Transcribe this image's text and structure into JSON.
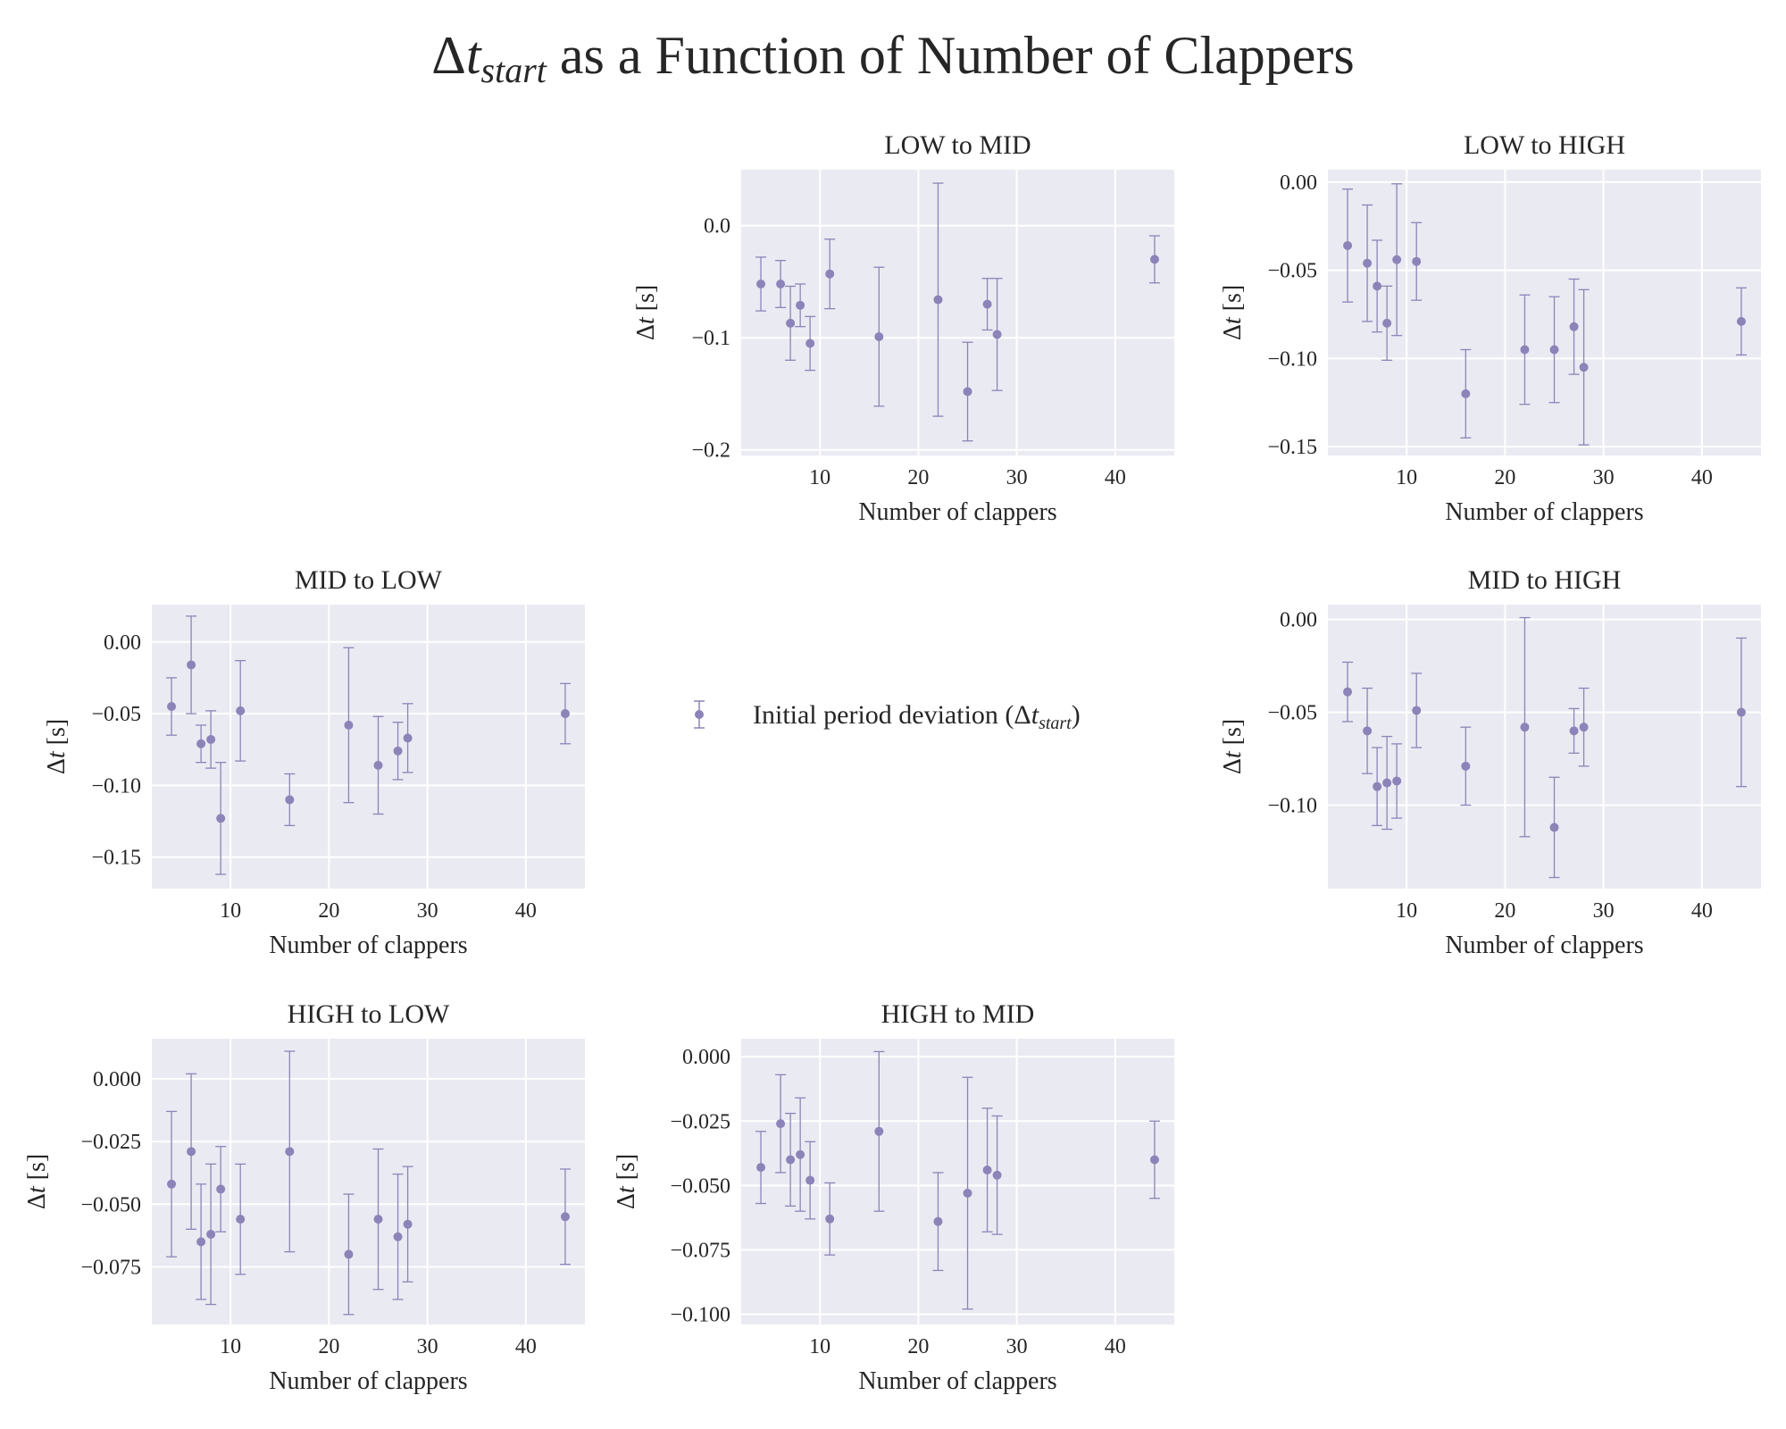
{
  "figure": {
    "title_prefix": "Δ",
    "title_var": "t",
    "title_sub": "start",
    "title_rest": " as a Function of Number of Clappers",
    "background": "#eaeaf2",
    "grid_color": "#ffffff",
    "marker_color": "#8c84b8"
  },
  "legend": {
    "label_main": "Initial period deviation (Δ",
    "label_var": "t",
    "label_sub": "start",
    "label_end": ")",
    "placement": "center"
  },
  "chart_data": [
    {
      "type": "scatter",
      "title": "LOW to MID",
      "xlabel": "Number of clappers",
      "ylabel_prefix": "Δ",
      "ylabel_var": "t",
      "ylabel_unit": " [s]",
      "xlim": [
        2,
        46
      ],
      "ylim": [
        -0.205,
        0.05
      ],
      "xticks": [
        10,
        20,
        30,
        40
      ],
      "yticks": [
        0.0,
        -0.1,
        -0.2
      ],
      "ytick_labels": [
        "0.0",
        "−0.1",
        "−0.2"
      ],
      "grid": true,
      "series": [
        {
          "x": [
            4,
            6,
            7,
            8,
            9,
            11,
            16,
            22,
            25,
            27,
            28,
            44
          ],
          "y": [
            -0.052,
            -0.052,
            -0.087,
            -0.071,
            -0.105,
            -0.043,
            -0.099,
            -0.066,
            -0.148,
            -0.07,
            -0.097,
            -0.03
          ],
          "yerr": [
            0.024,
            0.021,
            0.033,
            0.019,
            0.024,
            0.031,
            0.062,
            0.104,
            0.044,
            0.023,
            0.05,
            0.021
          ]
        }
      ]
    },
    {
      "type": "scatter",
      "title": "LOW to HIGH",
      "xlabel": "Number of clappers",
      "ylabel_prefix": "Δ",
      "ylabel_var": "t",
      "ylabel_unit": " [s]",
      "xlim": [
        2,
        46
      ],
      "ylim": [
        -0.155,
        0.007
      ],
      "xticks": [
        10,
        20,
        30,
        40
      ],
      "yticks": [
        0.0,
        -0.05,
        -0.1,
        -0.15
      ],
      "ytick_labels": [
        "0.00",
        "−0.05",
        "−0.10",
        "−0.15"
      ],
      "grid": true,
      "series": [
        {
          "x": [
            4,
            6,
            7,
            8,
            9,
            11,
            16,
            22,
            25,
            27,
            28,
            44
          ],
          "y": [
            -0.036,
            -0.046,
            -0.059,
            -0.08,
            -0.044,
            -0.045,
            -0.12,
            -0.095,
            -0.095,
            -0.082,
            -0.105,
            -0.079
          ],
          "yerr": [
            0.032,
            0.033,
            0.026,
            0.021,
            0.043,
            0.022,
            0.025,
            0.031,
            0.03,
            0.027,
            0.044,
            0.019
          ]
        }
      ]
    },
    {
      "type": "scatter",
      "title": "MID to LOW",
      "xlabel": "Number of clappers",
      "ylabel_prefix": "Δ",
      "ylabel_var": "t",
      "ylabel_unit": " [s]",
      "xlim": [
        2,
        46
      ],
      "ylim": [
        -0.172,
        0.026
      ],
      "xticks": [
        10,
        20,
        30,
        40
      ],
      "yticks": [
        0.0,
        -0.05,
        -0.1,
        -0.15
      ],
      "ytick_labels": [
        "0.00",
        "−0.05",
        "−0.10",
        "−0.15"
      ],
      "grid": true,
      "series": [
        {
          "x": [
            4,
            6,
            7,
            8,
            9,
            11,
            16,
            22,
            25,
            27,
            28,
            44
          ],
          "y": [
            -0.045,
            -0.016,
            -0.071,
            -0.068,
            -0.123,
            -0.048,
            -0.11,
            -0.058,
            -0.086,
            -0.076,
            -0.067,
            -0.05
          ],
          "yerr": [
            0.02,
            0.034,
            0.013,
            0.02,
            0.039,
            0.035,
            0.018,
            0.054,
            0.034,
            0.02,
            0.024,
            0.021
          ]
        }
      ]
    },
    {
      "type": "scatter",
      "title": "MID to HIGH",
      "xlabel": "Number of clappers",
      "ylabel_prefix": "Δ",
      "ylabel_var": "t",
      "ylabel_unit": " [s]",
      "xlim": [
        2,
        46
      ],
      "ylim": [
        -0.145,
        0.008
      ],
      "xticks": [
        10,
        20,
        30,
        40
      ],
      "yticks": [
        0.0,
        -0.05,
        -0.1
      ],
      "ytick_labels": [
        "0.00",
        "−0.05",
        "−0.10"
      ],
      "grid": true,
      "series": [
        {
          "x": [
            4,
            6,
            7,
            8,
            9,
            11,
            16,
            22,
            25,
            27,
            28,
            44
          ],
          "y": [
            -0.039,
            -0.06,
            -0.09,
            -0.088,
            -0.087,
            -0.049,
            -0.079,
            -0.058,
            -0.112,
            -0.06,
            -0.058,
            -0.05
          ],
          "yerr": [
            0.016,
            0.023,
            0.021,
            0.025,
            0.02,
            0.02,
            0.021,
            0.059,
            0.027,
            0.012,
            0.021,
            0.04
          ]
        }
      ]
    },
    {
      "type": "scatter",
      "title": "HIGH to LOW",
      "xlabel": "Number of clappers",
      "ylabel_prefix": "Δ",
      "ylabel_var": "t",
      "ylabel_unit": " [s]",
      "xlim": [
        2,
        46
      ],
      "ylim": [
        -0.098,
        0.016
      ],
      "xticks": [
        10,
        20,
        30,
        40
      ],
      "yticks": [
        0.0,
        -0.025,
        -0.05,
        -0.075
      ],
      "ytick_labels": [
        "0.000",
        "−0.025",
        "−0.050",
        "−0.075"
      ],
      "grid": true,
      "series": [
        {
          "x": [
            4,
            6,
            7,
            8,
            9,
            11,
            16,
            22,
            25,
            27,
            28,
            44
          ],
          "y": [
            -0.042,
            -0.029,
            -0.065,
            -0.062,
            -0.044,
            -0.056,
            -0.029,
            -0.07,
            -0.056,
            -0.063,
            -0.058,
            -0.055
          ],
          "yerr": [
            0.029,
            0.031,
            0.023,
            0.028,
            0.017,
            0.022,
            0.04,
            0.024,
            0.028,
            0.025,
            0.023,
            0.019
          ]
        }
      ]
    },
    {
      "type": "scatter",
      "title": "HIGH to MID",
      "xlabel": "Number of clappers",
      "ylabel_prefix": "Δ",
      "ylabel_var": "t",
      "ylabel_unit": " [s]",
      "xlim": [
        2,
        46
      ],
      "ylim": [
        -0.104,
        0.007
      ],
      "xticks": [
        10,
        20,
        30,
        40
      ],
      "yticks": [
        0.0,
        -0.025,
        -0.05,
        -0.075,
        -0.1
      ],
      "ytick_labels": [
        "0.000",
        "−0.025",
        "−0.050",
        "−0.075",
        "−0.100"
      ],
      "grid": true,
      "series": [
        {
          "x": [
            4,
            6,
            7,
            8,
            9,
            11,
            16,
            22,
            25,
            27,
            28,
            44
          ],
          "y": [
            -0.043,
            -0.026,
            -0.04,
            -0.038,
            -0.048,
            -0.063,
            -0.029,
            -0.064,
            -0.053,
            -0.044,
            -0.046,
            -0.04
          ],
          "yerr": [
            0.014,
            0.019,
            0.018,
            0.022,
            0.015,
            0.014,
            0.031,
            0.019,
            0.045,
            0.024,
            0.023,
            0.015
          ]
        }
      ]
    }
  ]
}
